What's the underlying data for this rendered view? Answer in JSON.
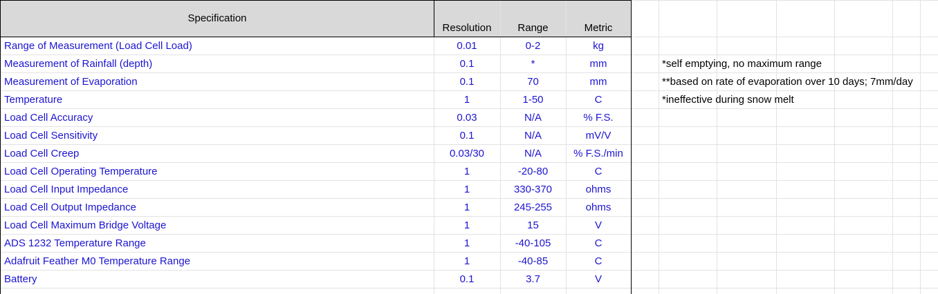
{
  "headers": {
    "specification": "Specification",
    "resolution": "Resolution",
    "range": "Range",
    "metric": "Metric"
  },
  "rows": [
    {
      "spec": "Range of Measurement (Load Cell Load)",
      "resolution": "0.01",
      "range": "0-2",
      "metric": "kg",
      "note": ""
    },
    {
      "spec": "Measurement of Rainfall (depth)",
      "resolution": "0.1",
      "range": "*",
      "metric": "mm",
      "note": "*self emptying, no maximum range"
    },
    {
      "spec": "Measurement of Evaporation",
      "resolution": "0.1",
      "range": "70",
      "metric": "mm",
      "note": "**based on rate of evaporation over 10 days; 7mm/day"
    },
    {
      "spec": "Temperature",
      "resolution": "1",
      "range": "1-50",
      "metric": "C",
      "note": "*ineffective during snow melt"
    },
    {
      "spec": "Load Cell Accuracy",
      "resolution": "0.03",
      "range": "N/A",
      "metric": "% F.S.",
      "note": ""
    },
    {
      "spec": "Load Cell Sensitivity",
      "resolution": "0.1",
      "range": "N/A",
      "metric": "mV/V",
      "note": ""
    },
    {
      "spec": "Load Cell Creep",
      "resolution": "0.03/30",
      "range": "N/A",
      "metric": "% F.S./min",
      "note": ""
    },
    {
      "spec": "Load Cell Operating Temperature",
      "resolution": "1",
      "range": "-20-80",
      "metric": "C",
      "note": ""
    },
    {
      "spec": "Load Cell Input Impedance",
      "resolution": "1",
      "range": "330-370",
      "metric": "ohms",
      "note": ""
    },
    {
      "spec": "Load Cell Output Impedance",
      "resolution": "1",
      "range": "245-255",
      "metric": "ohms",
      "note": ""
    },
    {
      "spec": "Load Cell Maximum Bridge Voltage",
      "resolution": "1",
      "range": "15",
      "metric": "V",
      "note": ""
    },
    {
      "spec": "ADS 1232 Temperature Range",
      "resolution": "1",
      "range": "-40-105",
      "metric": "C",
      "note": ""
    },
    {
      "spec": "Adafruit Feather M0 Temperature Range",
      "resolution": "1",
      "range": "-40-85",
      "metric": "C",
      "note": ""
    },
    {
      "spec": "Battery",
      "resolution": "0.1",
      "range": "3.7",
      "metric": "V",
      "note": ""
    }
  ]
}
